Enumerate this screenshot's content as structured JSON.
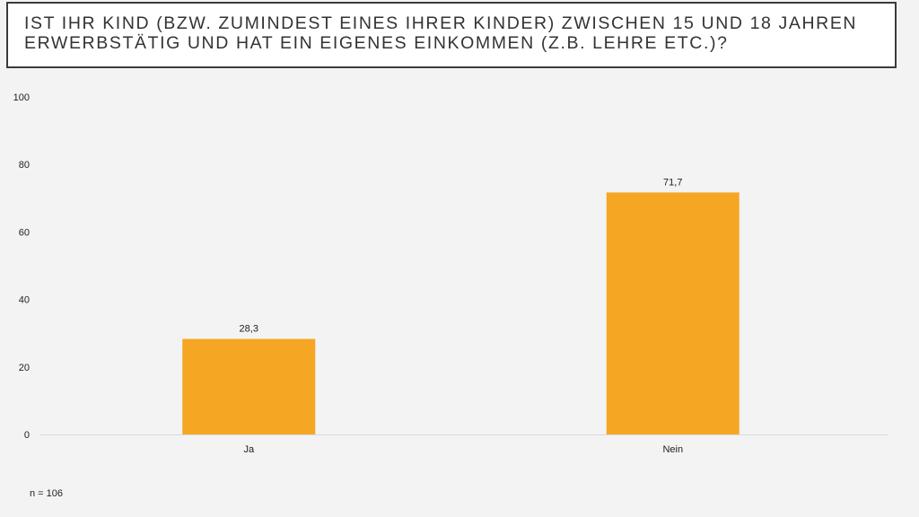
{
  "title": "Ist Ihr Kind (bzw. zumindest eines Ihrer Kinder) zwischen 15 und 18 Jahren erwerbstätig und hat ein eigenes Einkommen (z.B. Lehre etc.)?",
  "footnote": "n = 106",
  "colors": {
    "bar": "#f5a623",
    "axis": "#d9d9d9",
    "text": "#222222",
    "background": "#f3f3f3"
  },
  "chart_data": {
    "type": "bar",
    "categories": [
      "Ja",
      "Nein"
    ],
    "values": [
      28.3,
      71.7
    ],
    "value_labels": [
      "28,3",
      "71,7"
    ],
    "yticks": [
      0,
      20,
      40,
      60,
      80,
      100
    ],
    "ylim": [
      0,
      100
    ],
    "title": "Ist Ihr Kind (bzw. zumindest eines Ihrer Kinder) zwischen 15 und 18 Jahren erwerbstätig und hat ein eigenes Einkommen (z.B. Lehre etc.)?",
    "xlabel": "",
    "ylabel": "",
    "grid": false,
    "legend": "none"
  }
}
